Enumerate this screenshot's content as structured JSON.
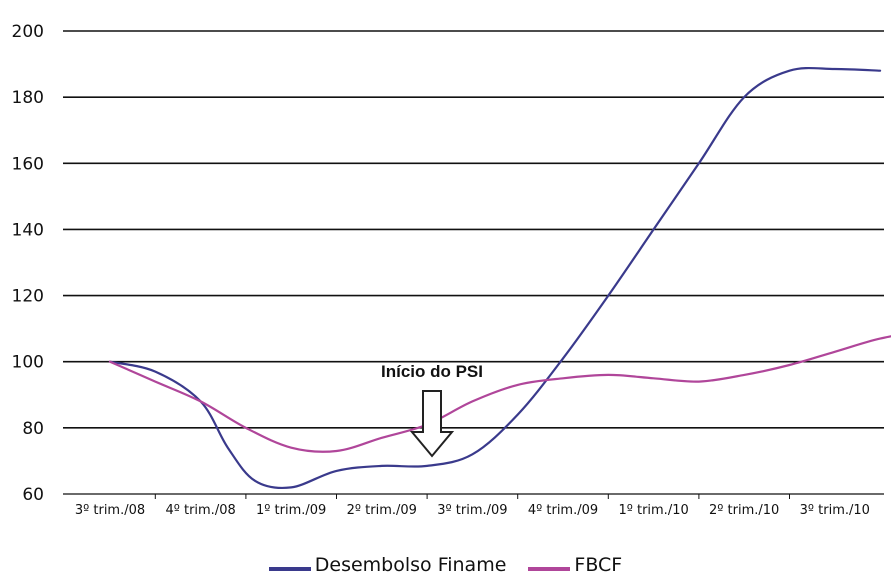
{
  "chart_data": {
    "type": "line",
    "categories": [
      "3º trim./08",
      "4º trim./08",
      "1º trim./09",
      "2º trim./09",
      "3º trim./09",
      "4º trim./09",
      "1º trim./10",
      "2º trim./10",
      "3º trim./10"
    ],
    "y_ticks": [
      60,
      80,
      100,
      120,
      140,
      160,
      180,
      200
    ],
    "ylim": [
      60,
      200
    ],
    "grid": true,
    "legend_position": "bottom",
    "annotation": "Início do PSI",
    "series": [
      {
        "name": "Desembolso Finame",
        "color": "#3a3a8c",
        "points": [
          [
            0,
            100
          ],
          [
            0.5,
            97
          ],
          [
            1,
            88
          ],
          [
            1.3,
            74
          ],
          [
            1.6,
            64
          ],
          [
            2,
            62
          ],
          [
            2.5,
            67
          ],
          [
            3,
            68.5
          ],
          [
            3.5,
            68.5
          ],
          [
            4,
            72
          ],
          [
            4.5,
            84
          ],
          [
            5,
            101
          ],
          [
            5.5,
            120
          ],
          [
            6,
            140
          ],
          [
            6.5,
            160
          ],
          [
            7,
            180
          ],
          [
            7.5,
            188
          ],
          [
            8,
            188.5
          ],
          [
            8.5,
            188
          ]
        ]
      },
      {
        "name": "FBCF",
        "color": "#b0469a",
        "points": [
          [
            0,
            100
          ],
          [
            0.5,
            94
          ],
          [
            1,
            88
          ],
          [
            1.5,
            80
          ],
          [
            2,
            74
          ],
          [
            2.5,
            73
          ],
          [
            3,
            77
          ],
          [
            3.5,
            81
          ],
          [
            4,
            88
          ],
          [
            4.5,
            93
          ],
          [
            5,
            95
          ],
          [
            5.5,
            96
          ],
          [
            6,
            95
          ],
          [
            6.5,
            94
          ],
          [
            7,
            96
          ],
          [
            7.5,
            99
          ],
          [
            8,
            103
          ],
          [
            8.5,
            107
          ],
          [
            9,
            109.5
          ]
        ]
      }
    ]
  }
}
